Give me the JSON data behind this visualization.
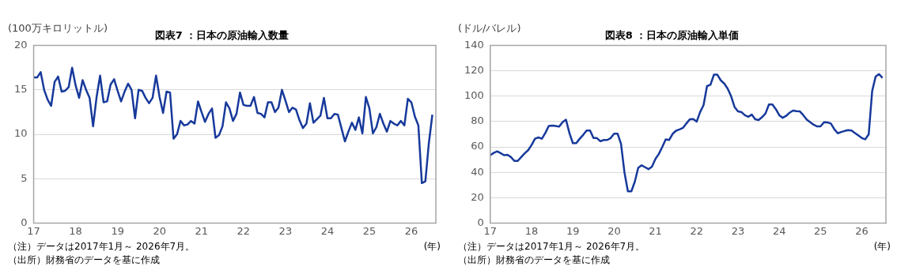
{
  "chart_data": [
    {
      "type": "line",
      "title": "図表7 ：日本の原油輸入数量",
      "ylabel": "(100万キロリットル)",
      "xlabel": "(年)",
      "annotations": [
        "（注）データは2017年1月～ 2026年7月。",
        "（出所）財務省のデータを基に作成"
      ],
      "x": [
        "2017-01",
        "2017-02",
        "2017-03",
        "2017-04",
        "2017-05",
        "2017-06",
        "2017-07",
        "2017-08",
        "2017-09",
        "2017-10",
        "2017-11",
        "2017-12",
        "2018-01",
        "2018-02",
        "2018-03",
        "2018-04",
        "2018-05",
        "2018-06",
        "2018-07",
        "2018-08",
        "2018-09",
        "2018-10",
        "2018-11",
        "2018-12",
        "2019-01",
        "2019-02",
        "2019-03",
        "2019-04",
        "2019-05",
        "2019-06",
        "2019-07",
        "2019-08",
        "2019-09",
        "2019-10",
        "2019-11",
        "2019-12",
        "2020-01",
        "2020-02",
        "2020-03",
        "2020-04",
        "2020-05",
        "2020-06",
        "2020-07",
        "2020-08",
        "2020-09",
        "2020-10",
        "2020-11",
        "2020-12",
        "2021-01",
        "2021-02",
        "2021-03",
        "2021-04",
        "2021-05",
        "2021-06",
        "2021-07",
        "2021-08",
        "2021-09",
        "2021-10",
        "2021-11",
        "2021-12",
        "2022-01",
        "2022-02",
        "2022-03",
        "2022-04",
        "2022-05",
        "2022-06",
        "2022-07",
        "2022-08",
        "2022-09",
        "2022-10",
        "2022-11",
        "2022-12",
        "2023-01",
        "2023-02",
        "2023-03",
        "2023-04",
        "2023-05",
        "2023-06",
        "2023-07",
        "2023-08",
        "2023-09",
        "2023-10",
        "2023-11",
        "2023-12",
        "2024-01",
        "2024-02",
        "2024-03",
        "2024-04",
        "2024-05",
        "2024-06",
        "2024-07",
        "2024-08",
        "2024-09",
        "2024-10",
        "2024-11",
        "2024-12",
        "2025-01",
        "2025-02",
        "2025-03",
        "2025-04",
        "2025-05",
        "2025-06",
        "2025-07",
        "2025-08",
        "2025-09",
        "2025-10",
        "2025-11",
        "2025-12",
        "2026-01",
        "2026-02",
        "2026-03",
        "2026-04",
        "2026-05",
        "2026-06",
        "2026-07"
      ],
      "series": [
        {
          "color": "#17399b",
          "values": [
            16.4,
            16.4,
            17.0,
            15.0,
            13.9,
            13.2,
            15.9,
            16.5,
            14.8,
            14.9,
            15.3,
            17.5,
            15.5,
            14.1,
            16.1,
            15.0,
            14.1,
            10.9,
            14.2,
            16.6,
            13.6,
            13.7,
            15.6,
            16.2,
            14.9,
            13.7,
            14.8,
            15.7,
            15.0,
            11.8,
            15.0,
            14.9,
            14.1,
            13.5,
            14.1,
            16.6,
            14.2,
            12.4,
            14.8,
            14.7,
            9.5,
            10.0,
            11.5,
            11.0,
            11.1,
            11.5,
            11.2,
            13.7,
            12.5,
            11.4,
            12.3,
            12.9,
            9.6,
            9.9,
            10.9,
            13.6,
            12.9,
            11.5,
            12.3,
            14.7,
            13.3,
            13.2,
            13.2,
            14.2,
            12.4,
            12.3,
            11.9,
            13.6,
            13.6,
            12.5,
            13.0,
            15.0,
            13.8,
            12.5,
            13.0,
            12.8,
            11.6,
            10.7,
            11.2,
            13.5,
            11.3,
            11.7,
            12.1,
            14.1,
            11.8,
            11.8,
            12.3,
            12.2,
            10.7,
            9.2,
            10.3,
            11.3,
            10.5,
            11.9,
            10.1,
            14.2,
            12.9,
            10.1,
            10.8,
            12.3,
            11.2,
            10.3,
            11.5,
            11.2,
            11.0,
            11.5,
            11.0,
            14.0,
            13.6,
            12.0,
            11.0,
            4.5,
            4.7,
            9.0,
            12.2
          ]
        }
      ],
      "xlim": [
        "2017-01",
        "2026-08"
      ],
      "xticks": [
        {
          "value": "2017-01",
          "label": "17"
        },
        {
          "value": "2018-01",
          "label": "18"
        },
        {
          "value": "2019-01",
          "label": "19"
        },
        {
          "value": "2020-01",
          "label": "20"
        },
        {
          "value": "2021-01",
          "label": "21"
        },
        {
          "value": "2022-01",
          "label": "22"
        },
        {
          "value": "2023-01",
          "label": "23"
        },
        {
          "value": "2024-01",
          "label": "24"
        },
        {
          "value": "2025-01",
          "label": "25"
        },
        {
          "value": "2026-01",
          "label": "26"
        }
      ],
      "ylim": [
        0,
        20
      ],
      "yticks": [
        0,
        5,
        10,
        15,
        20
      ],
      "grid": "y",
      "marker": "none"
    },
    {
      "type": "line",
      "title": "図表8 ：日本の原油輸入単価",
      "ylabel": "(ドル/バレル)",
      "xlabel": "(年)",
      "annotations": [
        "（注）データは2017年1月～ 2026年7月。",
        "（出所）財務省のデータを基に作成"
      ],
      "x": [
        "2017-01",
        "2017-02",
        "2017-03",
        "2017-04",
        "2017-05",
        "2017-06",
        "2017-07",
        "2017-08",
        "2017-09",
        "2017-10",
        "2017-11",
        "2017-12",
        "2018-01",
        "2018-02",
        "2018-03",
        "2018-04",
        "2018-05",
        "2018-06",
        "2018-07",
        "2018-08",
        "2018-09",
        "2018-10",
        "2018-11",
        "2018-12",
        "2019-01",
        "2019-02",
        "2019-03",
        "2019-04",
        "2019-05",
        "2019-06",
        "2019-07",
        "2019-08",
        "2019-09",
        "2019-10",
        "2019-11",
        "2019-12",
        "2020-01",
        "2020-02",
        "2020-03",
        "2020-04",
        "2020-05",
        "2020-06",
        "2020-07",
        "2020-08",
        "2020-09",
        "2020-10",
        "2020-11",
        "2020-12",
        "2021-01",
        "2021-02",
        "2021-03",
        "2021-04",
        "2021-05",
        "2021-06",
        "2021-07",
        "2021-08",
        "2021-09",
        "2021-10",
        "2021-11",
        "2021-12",
        "2022-01",
        "2022-02",
        "2022-03",
        "2022-04",
        "2022-05",
        "2022-06",
        "2022-07",
        "2022-08",
        "2022-09",
        "2022-10",
        "2022-11",
        "2022-12",
        "2023-01",
        "2023-02",
        "2023-03",
        "2023-04",
        "2023-05",
        "2023-06",
        "2023-07",
        "2023-08",
        "2023-09",
        "2023-10",
        "2023-11",
        "2023-12",
        "2024-01",
        "2024-02",
        "2024-03",
        "2024-04",
        "2024-05",
        "2024-06",
        "2024-07",
        "2024-08",
        "2024-09",
        "2024-10",
        "2024-11",
        "2024-12",
        "2025-01",
        "2025-02",
        "2025-03",
        "2025-04",
        "2025-05",
        "2025-06",
        "2025-07",
        "2025-08",
        "2025-09",
        "2025-10",
        "2025-11",
        "2025-12",
        "2026-01",
        "2026-02",
        "2026-03",
        "2026-04",
        "2026-05",
        "2026-06",
        "2026-07"
      ],
      "series": [
        {
          "color": "#17399b",
          "values": [
            53.5,
            55.3,
            56.5,
            55.1,
            53.5,
            53.8,
            52,
            49,
            49,
            52,
            55,
            57.4,
            61.5,
            66.5,
            67.5,
            66.5,
            71,
            76.5,
            76.8,
            76.5,
            76,
            79.5,
            81.5,
            71,
            63,
            63,
            66.5,
            69.5,
            73,
            73,
            67,
            67,
            64.5,
            65.5,
            65.5,
            67,
            70.5,
            70.5,
            62.5,
            40,
            25,
            25,
            32.5,
            43.5,
            45.5,
            44,
            42.5,
            44.5,
            50.5,
            54.5,
            60,
            66,
            65.5,
            70.3,
            72.8,
            73.8,
            75,
            78.5,
            81.8,
            82,
            80,
            87.5,
            93,
            108,
            109,
            117,
            117,
            112.5,
            110,
            106,
            100,
            91.5,
            88,
            87.5,
            85,
            83.8,
            85.5,
            81.8,
            81.2,
            83.5,
            86.4,
            93.5,
            93.5,
            89.8,
            85,
            83,
            84.5,
            87,
            88.7,
            88.2,
            88,
            85,
            81.5,
            79.5,
            77.5,
            76.2,
            76.2,
            79.5,
            79.3,
            78.5,
            74,
            70.8,
            71.8,
            72.6,
            73.3,
            73,
            71,
            69,
            67,
            66,
            70,
            104,
            115.5,
            117.5,
            114.5
          ]
        }
      ],
      "xlim": [
        "2017-01",
        "2026-08"
      ],
      "xticks": [
        {
          "value": "2017-01",
          "label": "17"
        },
        {
          "value": "2018-01",
          "label": "18"
        },
        {
          "value": "2019-01",
          "label": "19"
        },
        {
          "value": "2020-01",
          "label": "20"
        },
        {
          "value": "2021-01",
          "label": "21"
        },
        {
          "value": "2022-01",
          "label": "22"
        },
        {
          "value": "2023-01",
          "label": "23"
        },
        {
          "value": "2024-01",
          "label": "24"
        },
        {
          "value": "2025-01",
          "label": "25"
        },
        {
          "value": "2026-01",
          "label": "26"
        }
      ],
      "ylim": [
        0,
        140
      ],
      "yticks": [
        0,
        20,
        40,
        60,
        80,
        100,
        120,
        140
      ],
      "grid": "y",
      "marker": "none"
    }
  ]
}
